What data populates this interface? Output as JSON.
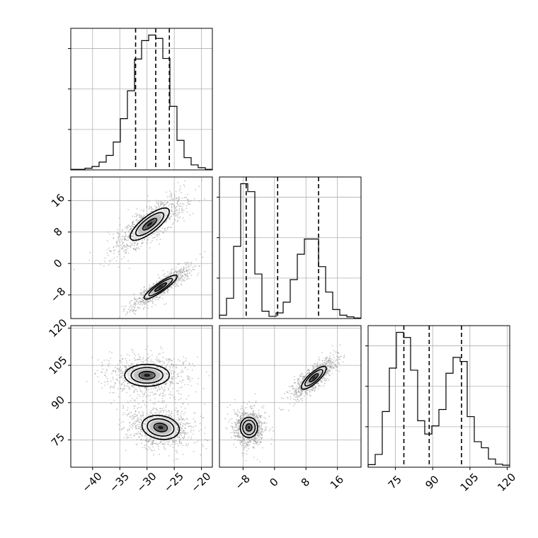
{
  "chart_data": {
    "type": "corner",
    "colors": {
      "line": "#000000",
      "grid": "#b0b0b0",
      "scatter": "#9a9a9a",
      "background": "#ffffff"
    },
    "grid": true,
    "quantiles_shown": true,
    "parameters": [
      {
        "range": [
          -44,
          -18
        ],
        "ticks": [
          -40,
          -35,
          -30,
          -25,
          -20
        ],
        "tick_labels": [
          "−40",
          "−35",
          "−30",
          "−25",
          "−20"
        ]
      },
      {
        "range": [
          -14,
          22
        ],
        "ticks": [
          -8,
          0,
          8,
          16
        ],
        "tick_labels": [
          "−8",
          "0",
          "8",
          "16"
        ]
      },
      {
        "range": [
          64,
          121
        ],
        "ticks": [
          75,
          90,
          105,
          120
        ],
        "tick_labels": [
          "75",
          "90",
          "105",
          "120"
        ]
      }
    ],
    "histograms": [
      {
        "parameter": 0,
        "bin_edges": [
          -44,
          -42.7,
          -41.4,
          -40.1,
          -38.8,
          -37.5,
          -36.2,
          -34.9,
          -33.6,
          -32.3,
          -31,
          -29.7,
          -28.4,
          -27.1,
          -25.8,
          -24.5,
          -23.2,
          -21.9,
          -20.6,
          -19.3,
          -18
        ],
        "counts": [
          1,
          1,
          3,
          6,
          14,
          26,
          50,
          92,
          142,
          199,
          232,
          242,
          236,
          200,
          114,
          53,
          22,
          9,
          4,
          1
        ],
        "quantiles": [
          -32.1,
          -28.4,
          -25.9
        ]
      },
      {
        "parameter": 1,
        "bin_edges": [
          -14,
          -12.2,
          -10.4,
          -8.6,
          -6.8,
          -5,
          -3.2,
          -1.4,
          0.4,
          2.2,
          4,
          5.8,
          7.6,
          9.4,
          11.2,
          13,
          14.8,
          16.6,
          18.4,
          20.2,
          22
        ],
        "counts": [
          6,
          36,
          128,
          239,
          225,
          79,
          13,
          4,
          10,
          29,
          69,
          114,
          141,
          141,
          92,
          47,
          16,
          6,
          3,
          1
        ],
        "quantiles": [
          -7.2,
          0.8,
          11.2
        ]
      },
      {
        "parameter": 2,
        "bin_edges": [
          64,
          66.85,
          69.7,
          72.55,
          75.4,
          78.25,
          81.1,
          83.95,
          86.8,
          89.65,
          92.5,
          95.35,
          98.2,
          101.05,
          103.9,
          106.75,
          109.6,
          112.45,
          115.3,
          118.15,
          121
        ],
        "counts": [
          5,
          25,
          109,
          194,
          264,
          254,
          190,
          91,
          65,
          81,
          113,
          184,
          215,
          207,
          99,
          50,
          38,
          16,
          6,
          4
        ],
        "quantiles": [
          78.4,
          88.6,
          101.6
        ]
      }
    ],
    "pairs": [
      {
        "x_param": 0,
        "y_param": 1,
        "clusters": [
          {
            "center": [
              -29.5,
              10.0
            ],
            "axes": [
              7.0,
              3.3
            ],
            "angle_deg": 38,
            "points": 900
          },
          {
            "center": [
              -27.5,
              -6.0
            ],
            "axes": [
              5.8,
              1.8
            ],
            "angle_deg": 35,
            "points": 850
          }
        ],
        "contour_levels": [
          0.5,
          1.0,
          1.4
        ]
      },
      {
        "x_param": 0,
        "y_param": 2,
        "clusters": [
          {
            "center": [
              -30.0,
              101.0
            ],
            "axes": [
              6.5,
              7.0
            ],
            "angle_deg": 0,
            "points": 850
          },
          {
            "center": [
              -27.5,
              80.0
            ],
            "axes": [
              5.5,
              7.5
            ],
            "angle_deg": -10,
            "points": 900
          }
        ],
        "contour_levels": [
          0.5,
          1.0,
          1.4
        ]
      },
      {
        "x_param": 1,
        "y_param": 2,
        "clusters": [
          {
            "center": [
              10.0,
              100.0
            ],
            "axes": [
              6.5,
              3.3
            ],
            "angle_deg": 42,
            "points": 850
          },
          {
            "center": [
              -6.5,
              80.0
            ],
            "axes": [
              3.5,
              6.5
            ],
            "angle_deg": 0,
            "points": 900
          }
        ],
        "contour_levels": [
          0.5,
          1.0,
          1.4
        ]
      }
    ]
  }
}
